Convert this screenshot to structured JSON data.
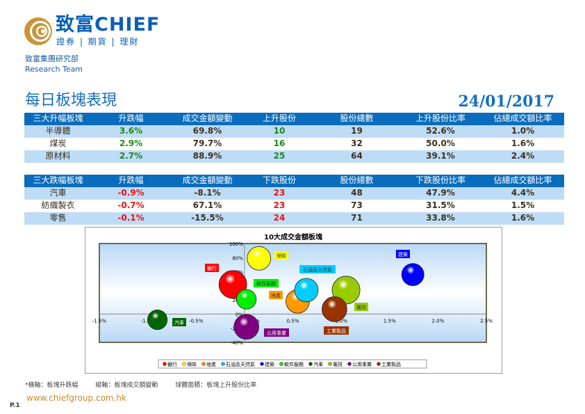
{
  "header": {
    "brand": "致富CHIEF",
    "brand_sub": "證券 | 期貨 | 理財",
    "dept": "致富集團研究部",
    "team": "Research Team"
  },
  "title": "每日板塊表現",
  "date": "24/01/2017",
  "top_table": {
    "headers": [
      "三大升幅板塊",
      "升跌幅",
      "成交金額變動",
      "上升股份",
      "股份總數",
      "上升股份比率",
      "佔總成交額比率"
    ],
    "rows": [
      [
        "半導體",
        "3.6%",
        "69.8%",
        "10",
        "19",
        "52.6%",
        "1.0%"
      ],
      [
        "煤炭",
        "2.9%",
        "79.7%",
        "16",
        "32",
        "50.0%",
        "1.6%"
      ],
      [
        "原材料",
        "2.7%",
        "88.9%",
        "25",
        "64",
        "39.1%",
        "2.4%"
      ]
    ]
  },
  "bottom_table": {
    "headers": [
      "三大跌幅板塊",
      "升跌幅",
      "成交金額變動",
      "下跌股份",
      "股份總數",
      "下跌股份比率",
      "佔總成交額比率"
    ],
    "rows": [
      [
        "汽車",
        "-0.9%",
        "-8.1%",
        "23",
        "48",
        "47.9%",
        "4.4%"
      ],
      [
        "紡織製衣",
        "-0.7%",
        "67.1%",
        "23",
        "73",
        "31.5%",
        "1.5%"
      ],
      [
        "零售",
        "-0.1%",
        "-15.5%",
        "24",
        "71",
        "33.8%",
        "1.6%"
      ]
    ]
  },
  "chart_data": {
    "type": "scatter",
    "title": "10大成交金額板塊",
    "xlabel": "板塊升跌幅",
    "ylabel": "板塊成交額變動",
    "xlim": [
      -1.5,
      2.5
    ],
    "ylim": [
      -40,
      100
    ],
    "x_ticks": [
      "-1.5%",
      "-1.0%",
      "-0.5%",
      "0.0%",
      "0.5%",
      "1.0%",
      "1.5%",
      "2.0%",
      "2.5%"
    ],
    "y_ticks": [
      "100%",
      "80%",
      "60%",
      "40%",
      "20%",
      "0%",
      "-20%",
      "-40%"
    ],
    "legend_position": "bottom",
    "series": [
      {
        "name": "銀行",
        "x": -0.12,
        "y": 42,
        "size": 50,
        "color": "#ff0000"
      },
      {
        "name": "保險",
        "x": 0.15,
        "y": 79,
        "size": 36,
        "color": "#ffff00"
      },
      {
        "name": "地產",
        "x": 0.55,
        "y": 18,
        "size": 36,
        "color": "#ff9900"
      },
      {
        "name": "石油及天然氣",
        "x": 0.64,
        "y": 34,
        "size": 36,
        "color": "#00ccff"
      },
      {
        "name": "建築",
        "x": 1.74,
        "y": 56,
        "size": 32,
        "color": "#0000ff"
      },
      {
        "name": "軟件服務",
        "x": 0.02,
        "y": 21,
        "size": 25,
        "color": "#00ee00"
      },
      {
        "name": "汽車",
        "x": -0.9,
        "y": -8,
        "size": 25,
        "color": "#006600"
      },
      {
        "name": "電訊",
        "x": 1.05,
        "y": 34,
        "size": 50,
        "color": "#99cc00"
      },
      {
        "name": "公用事業",
        "x": 0.02,
        "y": -18,
        "size": 40,
        "color": "#800080"
      },
      {
        "name": "工業製品",
        "x": 0.93,
        "y": 7,
        "size": 40,
        "color": "#993300"
      }
    ]
  },
  "footnote": [
    "*橫軸：板塊升跌幅",
    "縱軸：板塊成交額變動",
    "球體面積：板塊上升股份比率"
  ],
  "page": "P.1",
  "url": "www.chiefgroup.com.hk"
}
